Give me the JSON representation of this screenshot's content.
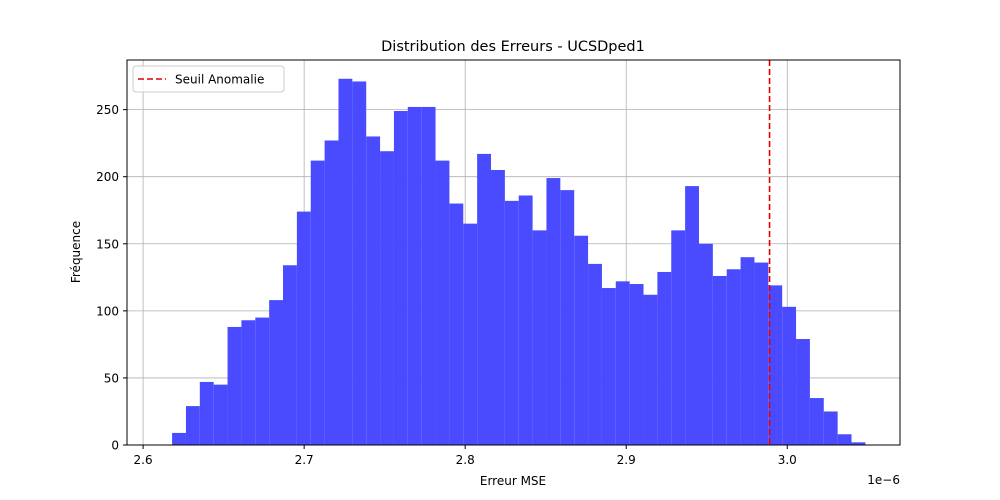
{
  "chart_data": {
    "type": "bar",
    "title": "Distribution des Erreurs - UCSDped1",
    "xlabel": "Erreur MSE",
    "ylabel": "Fréquence",
    "x_offset_label": "1e−6",
    "bin_start": 2.618,
    "bin_width": 0.00861,
    "values": [
      9,
      29,
      47,
      45,
      88,
      93,
      95,
      108,
      134,
      174,
      212,
      227,
      273,
      271,
      230,
      219,
      249,
      252,
      252,
      212,
      180,
      165,
      217,
      205,
      182,
      186,
      160,
      199,
      190,
      156,
      135,
      117,
      122,
      120,
      112,
      129,
      160,
      193,
      150,
      126,
      131,
      140,
      136,
      119,
      103,
      79,
      35,
      25,
      8,
      2
    ],
    "xlim": [
      2.59,
      3.07
    ],
    "ylim": [
      0,
      287
    ],
    "xticks": [
      2.6,
      2.7,
      2.8,
      2.9,
      3.0
    ],
    "xtick_labels": [
      "2.6",
      "2.7",
      "2.8",
      "2.9",
      "3.0"
    ],
    "yticks": [
      0,
      50,
      100,
      150,
      200,
      250
    ],
    "ytick_labels": [
      "0",
      "50",
      "100",
      "150",
      "200",
      "250"
    ],
    "grid": true,
    "bar_color": "#4a4aff",
    "threshold": {
      "x": 2.989,
      "label": "Seuil Anomalie",
      "color": "#e00000"
    },
    "legend_position": "top-left"
  }
}
